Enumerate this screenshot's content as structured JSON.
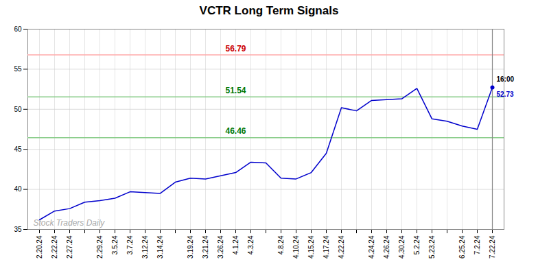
{
  "chart_data": {
    "type": "line",
    "title": "VCTR Long Term Signals",
    "categories": [
      "2.20.24",
      "2.22.24",
      "2.27.24",
      null,
      "2.29.24",
      "3.5.24",
      "3.7.24",
      "3.12.24",
      "3.14.24",
      null,
      "3.19.24",
      "3.21.24",
      "3.26.24",
      "4.1.24",
      "4.3.24",
      null,
      "4.8.24",
      "4.10.24",
      "4.15.24",
      "4.17.24",
      "4.22.24",
      null,
      "4.24.24",
      "4.26.24",
      "4.30.24",
      "5.2.24",
      "5.23.24",
      null,
      "6.25.24",
      "7.2.24",
      "7.22.24"
    ],
    "values": [
      36.2,
      37.3,
      37.6,
      38.4,
      38.6,
      38.9,
      39.7,
      39.6,
      39.5,
      40.9,
      41.4,
      41.3,
      41.7,
      42.1,
      43.4,
      43.3,
      41.4,
      41.3,
      42.1,
      44.5,
      50.2,
      49.8,
      51.1,
      51.2,
      51.3,
      52.6,
      48.8,
      48.5,
      47.9,
      47.5,
      52.73
    ],
    "color": "#0000cc",
    "ylim": [
      35,
      60
    ],
    "yticks": [
      35,
      40,
      45,
      50,
      55,
      60
    ],
    "grid": true,
    "reference_lines": [
      {
        "value": 56.79,
        "label": "56.79",
        "color": "#ffaaaa",
        "label_color": "#cc0000"
      },
      {
        "value": 51.54,
        "label": "51.54",
        "color": "#88cc88",
        "label_color": "#007700"
      },
      {
        "value": 46.46,
        "label": "46.46",
        "color": "#88cc88",
        "label_color": "#007700"
      }
    ],
    "last_point": {
      "time": "16:00",
      "price": 52.73,
      "rule_color": "#888888"
    },
    "watermark": {
      "text": "Stock Traders Daily",
      "color": "#aaaaaa"
    }
  }
}
